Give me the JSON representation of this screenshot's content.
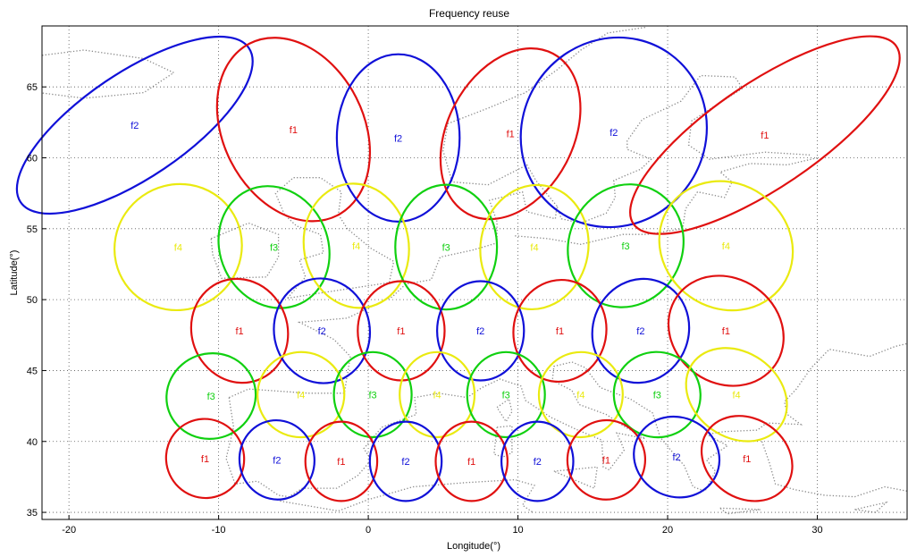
{
  "chart_data": {
    "type": "scatter",
    "title": "Frequency reuse",
    "xlabel": "Longitude(°)",
    "ylabel": "Latitude(°)",
    "xlim": [
      -21.8,
      36.0
    ],
    "ylim": [
      34.5,
      69.3
    ],
    "xticks": [
      -20,
      -10,
      0,
      10,
      20,
      30
    ],
    "yticks": [
      35,
      40,
      45,
      50,
      55,
      60,
      65
    ],
    "xtick_labels": [
      "-20",
      "-10",
      "0",
      "10",
      "20",
      "30"
    ],
    "ytick_labels": [
      "35",
      "40",
      "45",
      "50",
      "55",
      "60",
      "65"
    ],
    "grid": true,
    "grid_style": "dotted",
    "background": "coastline map of Europe (dotted)",
    "colors": {
      "f1": "#e01010",
      "f2": "#1010d8",
      "f3": "#10d010",
      "f4": "#eaea10"
    },
    "beams": [
      {
        "label": "f2",
        "lon": -15.6,
        "lat": 62.3,
        "rx": 9.2,
        "ry": 3.7,
        "angle": -34
      },
      {
        "label": "f1",
        "lon": -5.0,
        "lat": 62.0,
        "rx": 4.7,
        "ry": 6.8,
        "angle": -27
      },
      {
        "label": "f2",
        "lon": 2.0,
        "lat": 61.4,
        "rx": 4.1,
        "ry": 5.9,
        "angle": 0
      },
      {
        "label": "f1",
        "lon": 9.5,
        "lat": 61.7,
        "rx": 4.2,
        "ry": 6.4,
        "angle": 28
      },
      {
        "label": "f2",
        "lon": 16.4,
        "lat": 61.8,
        "rx": 6.1,
        "ry": 6.8,
        "angle": 35
      },
      {
        "label": "f1",
        "lon": 26.5,
        "lat": 61.6,
        "rx": 10.6,
        "ry": 3.7,
        "angle": -34
      },
      {
        "label": "f4",
        "lon": -12.7,
        "lat": 53.7,
        "rx": 4.3,
        "ry": 4.4,
        "angle": -35
      },
      {
        "label": "f3",
        "lon": -6.3,
        "lat": 53.7,
        "rx": 3.6,
        "ry": 4.4,
        "angle": -25
      },
      {
        "label": "f4",
        "lon": -0.8,
        "lat": 53.8,
        "rx": 3.5,
        "ry": 4.4,
        "angle": -10
      },
      {
        "label": "f3",
        "lon": 5.2,
        "lat": 53.7,
        "rx": 3.4,
        "ry": 4.4,
        "angle": 0
      },
      {
        "label": "f4",
        "lon": 11.1,
        "lat": 53.7,
        "rx": 3.6,
        "ry": 4.4,
        "angle": 10
      },
      {
        "label": "f3",
        "lon": 17.2,
        "lat": 53.8,
        "rx": 3.8,
        "ry": 4.4,
        "angle": 25
      },
      {
        "label": "f4",
        "lon": 23.9,
        "lat": 53.8,
        "rx": 4.6,
        "ry": 4.4,
        "angle": 35
      },
      {
        "label": "f1",
        "lon": -8.6,
        "lat": 47.8,
        "rx": 3.2,
        "ry": 3.7,
        "angle": -20
      },
      {
        "label": "f2",
        "lon": -3.1,
        "lat": 47.8,
        "rx": 3.2,
        "ry": 3.7,
        "angle": -10
      },
      {
        "label": "f1",
        "lon": 2.2,
        "lat": 47.8,
        "rx": 2.9,
        "ry": 3.5,
        "angle": 0
      },
      {
        "label": "f2",
        "lon": 7.5,
        "lat": 47.8,
        "rx": 2.9,
        "ry": 3.5,
        "angle": 0
      },
      {
        "label": "f1",
        "lon": 12.8,
        "lat": 47.8,
        "rx": 3.1,
        "ry": 3.6,
        "angle": 10
      },
      {
        "label": "f2",
        "lon": 18.2,
        "lat": 47.8,
        "rx": 3.2,
        "ry": 3.7,
        "angle": 20
      },
      {
        "label": "f1",
        "lon": 23.9,
        "lat": 47.8,
        "rx": 4.0,
        "ry": 3.7,
        "angle": 35
      },
      {
        "label": "f3",
        "lon": -10.5,
        "lat": 43.2,
        "rx": 3.0,
        "ry": 3.0,
        "angle": -20
      },
      {
        "label": "f4",
        "lon": -4.5,
        "lat": 43.3,
        "rx": 2.9,
        "ry": 3.0,
        "angle": -10
      },
      {
        "label": "f3",
        "lon": 0.3,
        "lat": 43.3,
        "rx": 2.6,
        "ry": 3.0,
        "angle": 0
      },
      {
        "label": "f4",
        "lon": 4.6,
        "lat": 43.3,
        "rx": 2.5,
        "ry": 3.0,
        "angle": 0
      },
      {
        "label": "f3",
        "lon": 9.2,
        "lat": 43.3,
        "rx": 2.6,
        "ry": 3.0,
        "angle": 0
      },
      {
        "label": "f4",
        "lon": 14.2,
        "lat": 43.3,
        "rx": 2.8,
        "ry": 3.0,
        "angle": 10
      },
      {
        "label": "f3",
        "lon": 19.3,
        "lat": 43.3,
        "rx": 2.9,
        "ry": 3.0,
        "angle": 20
      },
      {
        "label": "f4",
        "lon": 24.6,
        "lat": 43.3,
        "rx": 3.6,
        "ry": 3.0,
        "angle": 35
      },
      {
        "label": "f1",
        "lon": -10.9,
        "lat": 38.8,
        "rx": 2.6,
        "ry": 2.8,
        "angle": -25
      },
      {
        "label": "f2",
        "lon": -6.1,
        "lat": 38.7,
        "rx": 2.5,
        "ry": 2.8,
        "angle": -10
      },
      {
        "label": "f1",
        "lon": -1.8,
        "lat": 38.6,
        "rx": 2.4,
        "ry": 2.8,
        "angle": 0
      },
      {
        "label": "f2",
        "lon": 2.5,
        "lat": 38.6,
        "rx": 2.4,
        "ry": 2.8,
        "angle": 0
      },
      {
        "label": "f1",
        "lon": 6.9,
        "lat": 38.6,
        "rx": 2.4,
        "ry": 2.8,
        "angle": 0
      },
      {
        "label": "f2",
        "lon": 11.3,
        "lat": 38.6,
        "rx": 2.4,
        "ry": 2.8,
        "angle": 0
      },
      {
        "label": "f1",
        "lon": 15.9,
        "lat": 38.7,
        "rx": 2.6,
        "ry": 2.8,
        "angle": 10
      },
      {
        "label": "f2",
        "lon": 20.6,
        "lat": 38.9,
        "rx": 2.9,
        "ry": 2.8,
        "angle": 25
      },
      {
        "label": "f1",
        "lon": 25.3,
        "lat": 38.8,
        "rx": 3.2,
        "ry": 2.8,
        "angle": 35
      }
    ]
  }
}
